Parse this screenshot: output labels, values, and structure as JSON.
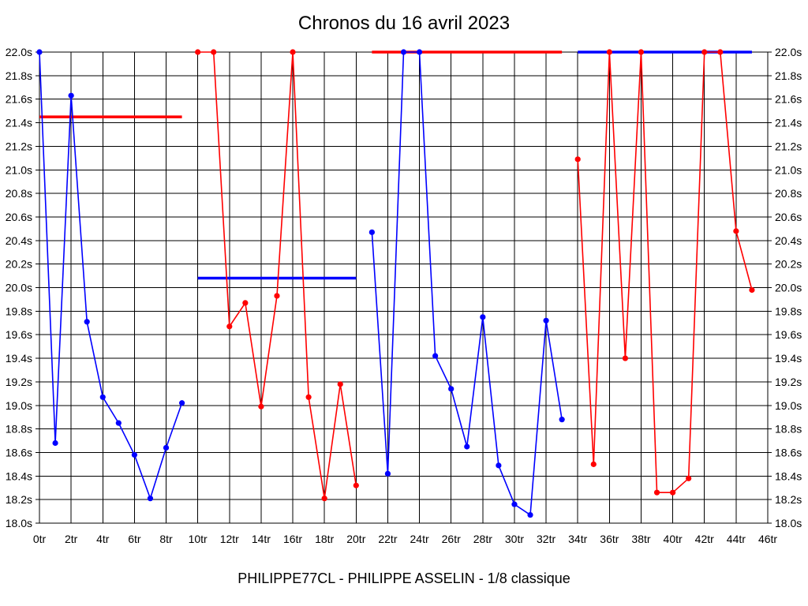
{
  "title": "Chronos du 16 avril 2023",
  "footer": "PHILIPPE77CL - PHILIPPE ASSELIN - 1/8 classique",
  "colors": {
    "background": "#ffffff",
    "grid": "#000000",
    "text": "#000000",
    "series_blue": "#0000ff",
    "series_red": "#ff0000"
  },
  "chart_data": {
    "type": "line",
    "title": "Chronos du 16 avril 2023",
    "footer": "PHILIPPE77CL - PHILIPPE ASSELIN - 1/8 classique",
    "grid": true,
    "legend": "none",
    "x_axis": {
      "min": 0,
      "max": 46,
      "tick_step": 2,
      "unit": "tr",
      "tick_labels": [
        "0tr",
        "2tr",
        "4tr",
        "6tr",
        "8tr",
        "10tr",
        "12tr",
        "14tr",
        "16tr",
        "18tr",
        "20tr",
        "22tr",
        "24tr",
        "26tr",
        "28tr",
        "30tr",
        "32tr",
        "34tr",
        "36tr",
        "38tr",
        "40tr",
        "42tr",
        "44tr",
        "46tr"
      ]
    },
    "y_axis": {
      "min": 18.0,
      "max": 22.0,
      "tick_step": 0.2,
      "unit": "s",
      "labels_on": "both",
      "tick_labels": [
        "22.0s",
        "21.8s",
        "21.6s",
        "21.4s",
        "21.2s",
        "21.0s",
        "20.8s",
        "20.6s",
        "20.4s",
        "20.2s",
        "20.0s",
        "19.8s",
        "19.6s",
        "19.4s",
        "19.2s",
        "19.0s",
        "18.8s",
        "18.6s",
        "18.4s",
        "18.2s",
        "18.0s"
      ]
    },
    "series": [
      {
        "name": "blue-run-1",
        "color": "#0000ff",
        "marker": "circle",
        "points": [
          [
            0,
            22.0
          ],
          [
            1,
            18.68
          ],
          [
            2,
            21.63
          ],
          [
            3,
            19.71
          ],
          [
            4,
            19.07
          ],
          [
            5,
            18.85
          ],
          [
            6,
            18.58
          ],
          [
            7,
            18.21
          ],
          [
            8,
            18.64
          ],
          [
            9,
            19.02
          ]
        ]
      },
      {
        "name": "red-run-1",
        "color": "#ff0000",
        "marker": "circle",
        "points": [
          [
            10,
            22.0
          ],
          [
            11,
            22.0
          ],
          [
            12,
            19.67
          ],
          [
            13,
            19.87
          ],
          [
            14,
            18.99
          ],
          [
            15,
            19.93
          ],
          [
            16,
            22.0
          ],
          [
            17,
            19.07
          ],
          [
            18,
            18.21
          ],
          [
            19,
            19.18
          ],
          [
            20,
            18.32
          ]
        ]
      },
      {
        "name": "blue-run-2",
        "color": "#0000ff",
        "marker": "circle",
        "points": [
          [
            21,
            20.47
          ],
          [
            22,
            18.42
          ],
          [
            23,
            22.0
          ],
          [
            24,
            22.0
          ],
          [
            25,
            19.42
          ],
          [
            26,
            19.14
          ],
          [
            27,
            18.65
          ],
          [
            28,
            19.75
          ],
          [
            29,
            18.49
          ],
          [
            30,
            18.16
          ],
          [
            31,
            18.07
          ],
          [
            32,
            19.72
          ],
          [
            33,
            18.88
          ]
        ]
      },
      {
        "name": "red-run-2",
        "color": "#ff0000",
        "marker": "circle",
        "points": [
          [
            34,
            21.09
          ],
          [
            35,
            18.5
          ],
          [
            36,
            22.0
          ],
          [
            37,
            19.4
          ],
          [
            38,
            22.0
          ],
          [
            39,
            18.26
          ],
          [
            40,
            18.26
          ],
          [
            41,
            18.38
          ],
          [
            42,
            22.0
          ],
          [
            43,
            22.0
          ],
          [
            44,
            20.48
          ],
          [
            45,
            19.98
          ]
        ]
      }
    ],
    "reference_lines": [
      {
        "name": "red-average-1",
        "color": "#ff0000",
        "y": 21.45,
        "x_start": 0,
        "x_end": 9
      },
      {
        "name": "blue-average-1",
        "color": "#0000ff",
        "y": 20.08,
        "x_start": 10,
        "x_end": 20
      },
      {
        "name": "red-average-2",
        "color": "#ff0000",
        "y": 22.0,
        "x_start": 21,
        "x_end": 33
      },
      {
        "name": "blue-average-2",
        "color": "#0000ff",
        "y": 22.0,
        "x_start": 34,
        "x_end": 45
      }
    ]
  }
}
